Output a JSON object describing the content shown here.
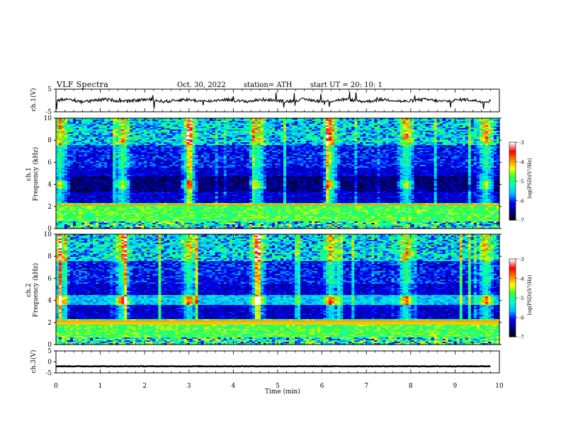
{
  "header": {
    "title": "VLF  Spectra",
    "date": "Oct. 30, 2022",
    "station": "station= ATH",
    "start": "start  UT  =    20: 10: 1"
  },
  "chart_data": [
    {
      "type": "line",
      "panel": "ch1-waveform",
      "ylabel": "ch.1(V)",
      "ylim": [
        -5,
        5
      ],
      "yticks": [
        "5",
        "-5"
      ],
      "xlim": [
        0,
        10
      ],
      "baseline": 0,
      "description_values": "noisy trace near 0 V with occasional spikes"
    },
    {
      "type": "heatmap",
      "panel": "ch1-spectrogram",
      "ylabel": "ch.1\nFrequency (kHz)",
      "ylim": [
        0,
        10
      ],
      "yticks": [
        "0",
        "2",
        "4",
        "6",
        "8",
        "10"
      ],
      "xlim": [
        0,
        10
      ],
      "colorbar": {
        "label": "log(PSD)(V²/Hz)",
        "min": -7,
        "max": -3,
        "ticks": [
          "-3",
          "-4",
          "-5",
          "-6",
          "-7"
        ]
      },
      "bursts_min": [
        0.1,
        1.5,
        3.0,
        4.55,
        6.2,
        7.9,
        9.7
      ]
    },
    {
      "type": "heatmap",
      "panel": "ch2-spectrogram",
      "ylabel": "ch.2\nFrequency (kHz)",
      "ylim": [
        0,
        10
      ],
      "yticks": [
        "0",
        "2",
        "4",
        "6",
        "8",
        "10"
      ],
      "xlim": [
        0,
        10
      ],
      "colorbar": {
        "label": "log(PSD)(V²/Hz)",
        "min": -7,
        "max": -3,
        "ticks": [
          "-3",
          "-4",
          "-5",
          "-6",
          "-7"
        ]
      },
      "bursts_min": [
        0.1,
        1.5,
        3.0,
        4.55,
        6.2,
        7.9,
        9.7
      ]
    },
    {
      "type": "line",
      "panel": "ch3-waveform",
      "ylabel": "ch.3(V)",
      "ylim": [
        -5,
        5
      ],
      "yticks": [
        "5",
        "0",
        "-5"
      ],
      "xlim": [
        0,
        10
      ],
      "baseline": -2
    }
  ],
  "xaxis": {
    "label": "Time  (min)",
    "ticks": [
      "0",
      "1",
      "2",
      "3",
      "4",
      "5",
      "6",
      "7",
      "8",
      "9",
      "10"
    ]
  },
  "colors": {
    "colormap": [
      "#000000",
      "#00008b",
      "#0000ff",
      "#00bfff",
      "#00ffcc",
      "#33ff33",
      "#ffff00",
      "#ff8000",
      "#ff0000",
      "#ffffff"
    ]
  }
}
